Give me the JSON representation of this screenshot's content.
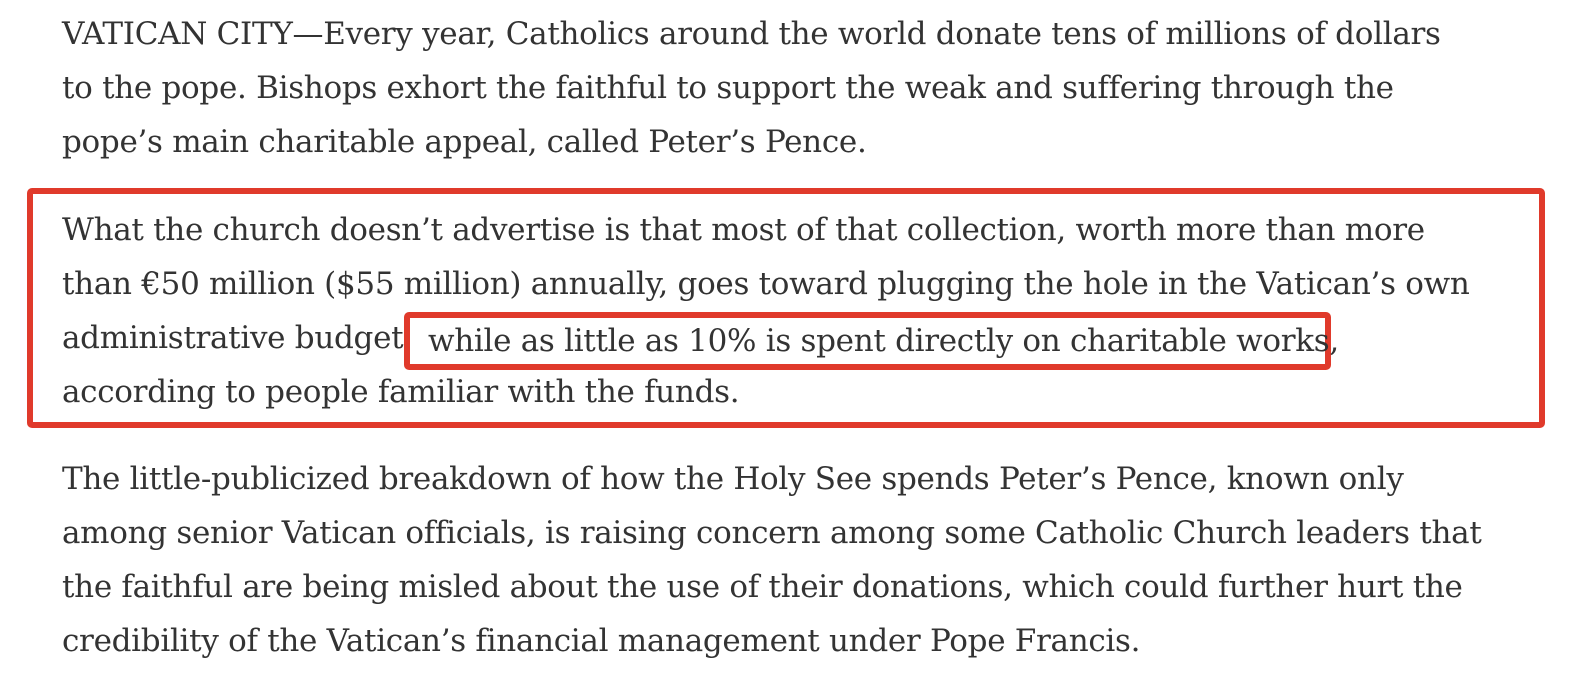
{
  "article": {
    "paragraphs": [
      {
        "lines": [
          "VATICAN CITY—Every year, Catholics around the world donate tens of millions of dollars",
          "to the pope. Bishops exhort the faithful to support the weak and suffering through the",
          "pope’s main charitable appeal, called Peter’s Pence."
        ]
      },
      {
        "lines": [
          "What the church doesn’t advertise is that most of that collection, worth more than more",
          "than €50 million ($55 million) annually, goes toward plugging the hole in the Vatican’s own",
          "administrative budget,",
          "according to people familiar with the funds."
        ],
        "highlight_text": "while as little as 10% is spent directly on charitable works,"
      },
      {
        "lines": [
          "The little-publicized breakdown of how the Holy See spends Peter’s Pence, known only",
          "among senior Vatican officials, is raising concern among some Catholic Church leaders that",
          "the faithful are being misled about the use of their donations, which could further hurt the",
          "credibility of the Vatican’s financial management under Pope Francis."
        ]
      }
    ]
  },
  "colors": {
    "text": "#333333",
    "annotation": "#e03a2b",
    "background": "#ffffff"
  }
}
